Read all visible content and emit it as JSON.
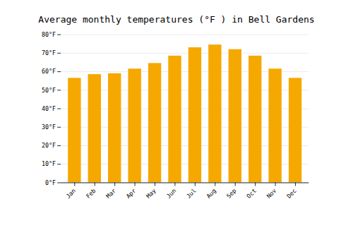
{
  "chart_data": {
    "type": "bar",
    "title": "Average monthly temperatures (°F ) in Bell Gardens",
    "categories": [
      "Jan",
      "Feb",
      "Mar",
      "Apr",
      "May",
      "Jun",
      "Jul",
      "Aug",
      "Sep",
      "Oct",
      "Nov",
      "Dec"
    ],
    "values": [
      56.5,
      58.5,
      59.0,
      61.5,
      64.5,
      68.5,
      73.0,
      74.5,
      72.0,
      68.5,
      61.5,
      56.5
    ],
    "color": "#F5A800",
    "ylim": [
      0,
      80
    ],
    "yticks": [
      {
        "value": 0,
        "label": "0°F"
      },
      {
        "value": 10,
        "label": "10°F"
      },
      {
        "value": 20,
        "label": "20°F"
      },
      {
        "value": 30,
        "label": "30°F"
      },
      {
        "value": 40,
        "label": "40°F"
      },
      {
        "value": 50,
        "label": "50°F"
      },
      {
        "value": 60,
        "label": "60°F"
      },
      {
        "value": 70,
        "label": "70°F"
      },
      {
        "value": 80,
        "label": "80°F"
      }
    ],
    "grid": true
  }
}
